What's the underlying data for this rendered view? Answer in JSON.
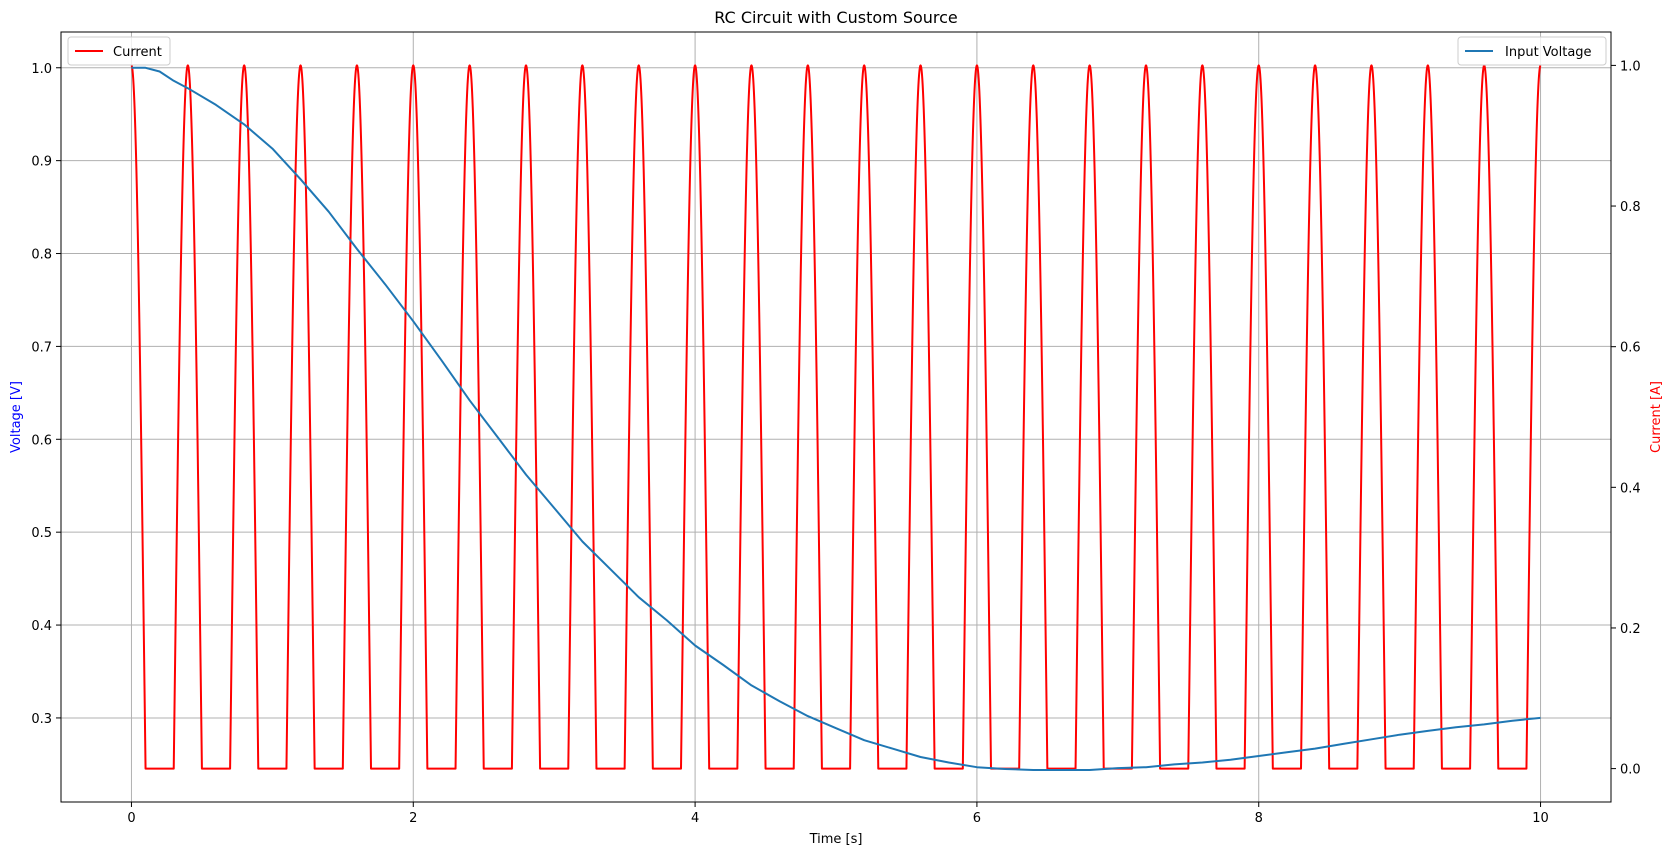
{
  "chart_data": {
    "type": "line",
    "title": "RC Circuit with Custom Source",
    "xlabel": "Time [s]",
    "ylabel_left": "Voltage [V]",
    "ylabel_right": "Current [A]",
    "xlim": [
      -0.5,
      10.5
    ],
    "ylim_left": [
      0.2095,
      1.0385
    ],
    "ylim_right": [
      -0.0475,
      1.0475
    ],
    "x_ticks": [
      "0",
      "2",
      "4",
      "6",
      "8",
      "10"
    ],
    "y_left_ticks": [
      "0.3",
      "0.4",
      "0.5",
      "0.6",
      "0.7",
      "0.8",
      "0.9",
      "1.0"
    ],
    "y_right_ticks": [
      "0.0",
      "0.2",
      "0.4",
      "0.6",
      "0.8",
      "1.0"
    ],
    "grid": true,
    "series": [
      {
        "name": "Input Voltage",
        "axis": "left",
        "color": "#1f77b4",
        "legend": "upper-right",
        "x": [
          0,
          0.1,
          0.2,
          0.3,
          0.4,
          0.6,
          0.8,
          1.0,
          1.2,
          1.4,
          1.6,
          1.8,
          2.0,
          2.2,
          2.4,
          2.6,
          2.8,
          3.0,
          3.2,
          3.4,
          3.6,
          3.8,
          4.0,
          4.2,
          4.4,
          4.6,
          4.8,
          5.0,
          5.2,
          5.4,
          5.6,
          5.8,
          6.0,
          6.2,
          6.4,
          6.6,
          6.8,
          7.0,
          7.2,
          7.4,
          7.6,
          7.8,
          8.0,
          8.2,
          8.4,
          8.6,
          8.8,
          9.0,
          9.2,
          9.4,
          9.6,
          9.8,
          10.0
        ],
        "y": [
          1.0,
          1.0,
          0.996,
          0.986,
          0.978,
          0.96,
          0.939,
          0.913,
          0.88,
          0.845,
          0.805,
          0.767,
          0.727,
          0.685,
          0.642,
          0.602,
          0.562,
          0.526,
          0.49,
          0.46,
          0.43,
          0.405,
          0.378,
          0.357,
          0.335,
          0.318,
          0.302,
          0.289,
          0.276,
          0.267,
          0.258,
          0.252,
          0.247,
          0.245,
          0.244,
          0.244,
          0.244,
          0.246,
          0.247,
          0.25,
          0.252,
          0.255,
          0.259,
          0.263,
          0.267,
          0.272,
          0.277,
          0.282,
          0.286,
          0.29,
          0.293,
          0.297,
          0.3
        ]
      },
      {
        "name": "Current",
        "axis": "right",
        "color": "#ff0000",
        "legend": "upper-left",
        "period": 0.4,
        "pulse_halfwidth": 0.1,
        "x_start": 0,
        "x_end": 10,
        "y_min": 0.0,
        "y_max": 1.0
      }
    ]
  }
}
